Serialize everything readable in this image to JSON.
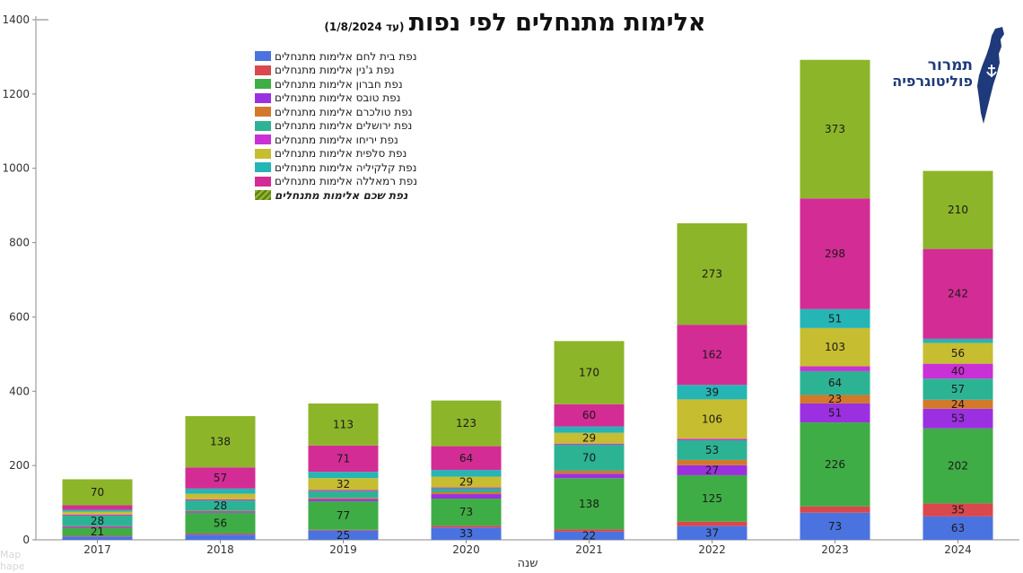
{
  "title": "אלימות מתנחלים לפי נפות",
  "subtitle": "(עד 1/8/2024)",
  "logo": {
    "line1": "תמרור",
    "line2": "פוליטוגרפיה",
    "icon": "israel-map-icon"
  },
  "watermark": [
    "Map",
    "hape"
  ],
  "chart_data": {
    "type": "bar",
    "stacked": true,
    "xlabel": "שנה",
    "ylabel": "",
    "ylim": [
      0,
      1400
    ],
    "yticks": [
      0,
      200,
      400,
      600,
      800,
      1000,
      1200,
      1400
    ],
    "grid": false,
    "legend_position": "top-left",
    "categories": [
      "2017",
      "2018",
      "2019",
      "2020",
      "2021",
      "2022",
      "2023",
      "2024"
    ],
    "series": [
      {
        "name": "נפת בית לחם אלימות מתנחלים",
        "color": "#4a73e0",
        "values": [
          9,
          14,
          25,
          33,
          22,
          37,
          73,
          63
        ],
        "labels": [
          null,
          null,
          "25",
          "33",
          "22",
          "37",
          "73",
          "63"
        ]
      },
      {
        "name": "נפת ג'נין אלימות מתנחלים",
        "color": "#d9484d",
        "values": [
          2,
          3,
          2,
          5,
          6,
          12,
          17,
          35
        ],
        "labels": [
          null,
          null,
          null,
          null,
          null,
          null,
          null,
          "35"
        ]
      },
      {
        "name": "נפת חברון אלימות מתנחלים",
        "color": "#3fad45",
        "values": [
          21,
          56,
          77,
          73,
          138,
          125,
          226,
          202
        ],
        "labels": [
          "21",
          "56",
          "77",
          "73",
          "138",
          "125",
          "226",
          "202"
        ]
      },
      {
        "name": "נפת טובס אלימות מתנחלים",
        "color": "#9b30e0",
        "values": [
          3,
          3,
          6,
          12,
          12,
          27,
          51,
          53
        ],
        "labels": [
          null,
          null,
          null,
          null,
          null,
          "27",
          "51",
          "53"
        ]
      },
      {
        "name": "נפת טולכרם אלימות מתנחלים",
        "color": "#d2792b",
        "values": [
          2,
          2,
          3,
          5,
          8,
          14,
          23,
          24
        ],
        "labels": [
          null,
          null,
          null,
          null,
          null,
          null,
          "23",
          "24"
        ]
      },
      {
        "name": "נפת ירושלים אלימות מתנחלים",
        "color": "#2cb394",
        "values": [
          28,
          28,
          18,
          10,
          70,
          53,
          64,
          57
        ],
        "labels": [
          "28",
          "28",
          null,
          null,
          "70",
          "53",
          "64",
          "57"
        ]
      },
      {
        "name": "נפת יריחו אלימות מתנחלים",
        "color": "#c930d6",
        "values": [
          3,
          3,
          3,
          3,
          3,
          4,
          13,
          40
        ],
        "labels": [
          null,
          null,
          null,
          null,
          null,
          null,
          null,
          "40"
        ]
      },
      {
        "name": "נפת סלפית אלימות מתנחלים",
        "color": "#c7bd31",
        "values": [
          8,
          15,
          32,
          29,
          29,
          106,
          103,
          56
        ],
        "labels": [
          null,
          null,
          "32",
          "29",
          "29",
          "106",
          "103",
          "56"
        ]
      },
      {
        "name": "נפת קלקיליה אלימות מתנחלים",
        "color": "#26b5b5",
        "values": [
          5,
          14,
          17,
          18,
          17,
          39,
          51,
          11
        ],
        "labels": [
          null,
          null,
          null,
          null,
          null,
          "39",
          "51",
          null
        ]
      },
      {
        "name": "נפת רמאללה אלימות מתנחלים",
        "color": "#d42c95",
        "values": [
          12,
          57,
          71,
          64,
          60,
          162,
          298,
          242
        ],
        "labels": [
          null,
          "57",
          "71",
          "64",
          "60",
          "162",
          "298",
          "242"
        ]
      },
      {
        "name": "נפת שכם אלימות מתנחלים",
        "color": "#8db52a",
        "values": [
          70,
          138,
          113,
          123,
          170,
          273,
          373,
          210
        ],
        "labels": [
          "70",
          "138",
          "113",
          "123",
          "170",
          "273",
          "373",
          "210"
        ],
        "emphasis": true
      }
    ]
  }
}
